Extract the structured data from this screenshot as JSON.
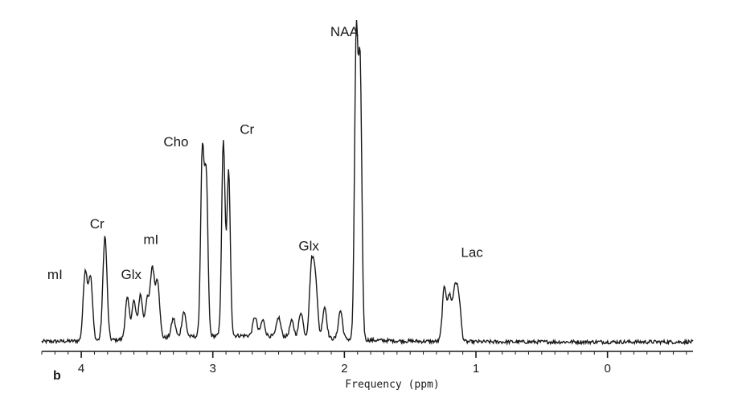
{
  "chart_data": {
    "type": "line",
    "panel_label": "b",
    "xlabel": "Frequency (ppm)",
    "xlim": [
      4.3,
      -0.65
    ],
    "x_reversed": true,
    "ticks": [
      {
        "value": 4,
        "label": "4"
      },
      {
        "value": 3,
        "label": "3"
      },
      {
        "value": 2,
        "label": "2"
      },
      {
        "value": 1,
        "label": "1"
      },
      {
        "value": 0,
        "label": "0"
      }
    ],
    "ylim": [
      0,
      1
    ],
    "baseline": 0.03,
    "peaks": [
      {
        "ppm": 3.97,
        "height": 0.22
      },
      {
        "ppm": 3.93,
        "height": 0.2
      },
      {
        "ppm": 3.82,
        "height": 0.33
      },
      {
        "ppm": 3.65,
        "height": 0.13
      },
      {
        "ppm": 3.6,
        "height": 0.12
      },
      {
        "ppm": 3.55,
        "height": 0.14
      },
      {
        "ppm": 3.5,
        "height": 0.12
      },
      {
        "ppm": 3.46,
        "height": 0.22
      },
      {
        "ppm": 3.42,
        "height": 0.18
      },
      {
        "ppm": 3.3,
        "height": 0.06
      },
      {
        "ppm": 3.22,
        "height": 0.08
      },
      {
        "ppm": 3.08,
        "height": 0.58
      },
      {
        "ppm": 3.05,
        "height": 0.5
      },
      {
        "ppm": 2.92,
        "height": 0.62
      },
      {
        "ppm": 2.88,
        "height": 0.52
      },
      {
        "ppm": 2.68,
        "height": 0.06
      },
      {
        "ppm": 2.62,
        "height": 0.05
      },
      {
        "ppm": 2.5,
        "height": 0.06
      },
      {
        "ppm": 2.4,
        "height": 0.05
      },
      {
        "ppm": 2.33,
        "height": 0.08
      },
      {
        "ppm": 2.25,
        "height": 0.22
      },
      {
        "ppm": 2.22,
        "height": 0.18
      },
      {
        "ppm": 2.15,
        "height": 0.1
      },
      {
        "ppm": 2.03,
        "height": 0.09
      },
      {
        "ppm": 1.91,
        "height": 0.95
      },
      {
        "ppm": 1.88,
        "height": 0.85
      },
      {
        "ppm": 1.24,
        "height": 0.17
      },
      {
        "ppm": 1.2,
        "height": 0.14
      },
      {
        "ppm": 1.16,
        "height": 0.16
      },
      {
        "ppm": 1.13,
        "height": 0.13
      }
    ],
    "annotations": [
      {
        "text": "mI",
        "ppm": 4.2,
        "y": 0.23
      },
      {
        "text": "Cr",
        "ppm": 3.88,
        "y": 0.39
      },
      {
        "text": "Glx",
        "ppm": 3.62,
        "y": 0.23
      },
      {
        "text": "mI",
        "ppm": 3.47,
        "y": 0.34
      },
      {
        "text": "Cho",
        "ppm": 3.28,
        "y": 0.65
      },
      {
        "text": "Cr",
        "ppm": 2.74,
        "y": 0.69
      },
      {
        "text": "Glx",
        "ppm": 2.27,
        "y": 0.32
      },
      {
        "text": "NAA",
        "ppm": 2.0,
        "y": 1.0
      },
      {
        "text": "Lac",
        "ppm": 1.03,
        "y": 0.3
      }
    ]
  }
}
